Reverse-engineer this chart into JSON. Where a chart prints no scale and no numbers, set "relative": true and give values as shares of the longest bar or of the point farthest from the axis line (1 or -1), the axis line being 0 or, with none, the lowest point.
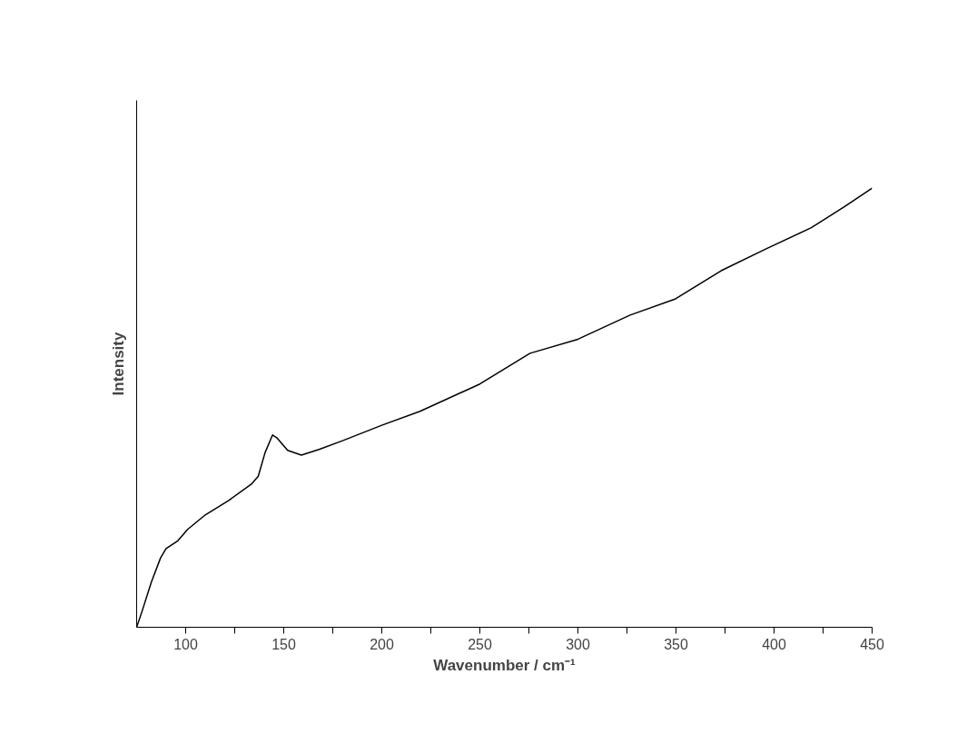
{
  "chart_data": {
    "type": "line",
    "xlabel": "Wavenumber / cm⁻¹",
    "ylabel": "Intensity",
    "relative": true,
    "color": "#000000",
    "xlim": [
      75,
      450
    ],
    "xticks": [
      100,
      {
        "value": 125,
        "label": null
      },
      150,
      {
        "value": 175,
        "label": null
      },
      200,
      {
        "value": 225,
        "label": null
      },
      250,
      {
        "value": 275,
        "label": null
      },
      300,
      {
        "value": 325,
        "label": null
      },
      350,
      {
        "value": 375,
        "label": null
      },
      400,
      {
        "value": 425,
        "label": null
      },
      450
    ],
    "x": [
      75,
      77.8,
      82.5,
      87.2,
      90,
      96,
      101,
      110,
      122,
      133.5,
      137,
      140.5,
      144.3,
      146.6,
      152,
      159,
      168,
      180,
      200,
      219.5,
      250,
      275.6,
      300,
      326.6,
      349.8,
      373,
      396,
      419,
      436,
      450
    ],
    "values": [
      0,
      0.037,
      0.103,
      0.158,
      0.179,
      0.197,
      0.223,
      0.256,
      0.289,
      0.326,
      0.344,
      0.398,
      0.438,
      0.431,
      0.403,
      0.392,
      0.405,
      0.425,
      0.46,
      0.492,
      0.554,
      0.624,
      0.656,
      0.711,
      0.748,
      0.812,
      0.862,
      0.91,
      0.958,
      1.0
    ],
    "grid": false,
    "marker": "none",
    "line_style": "solid"
  }
}
